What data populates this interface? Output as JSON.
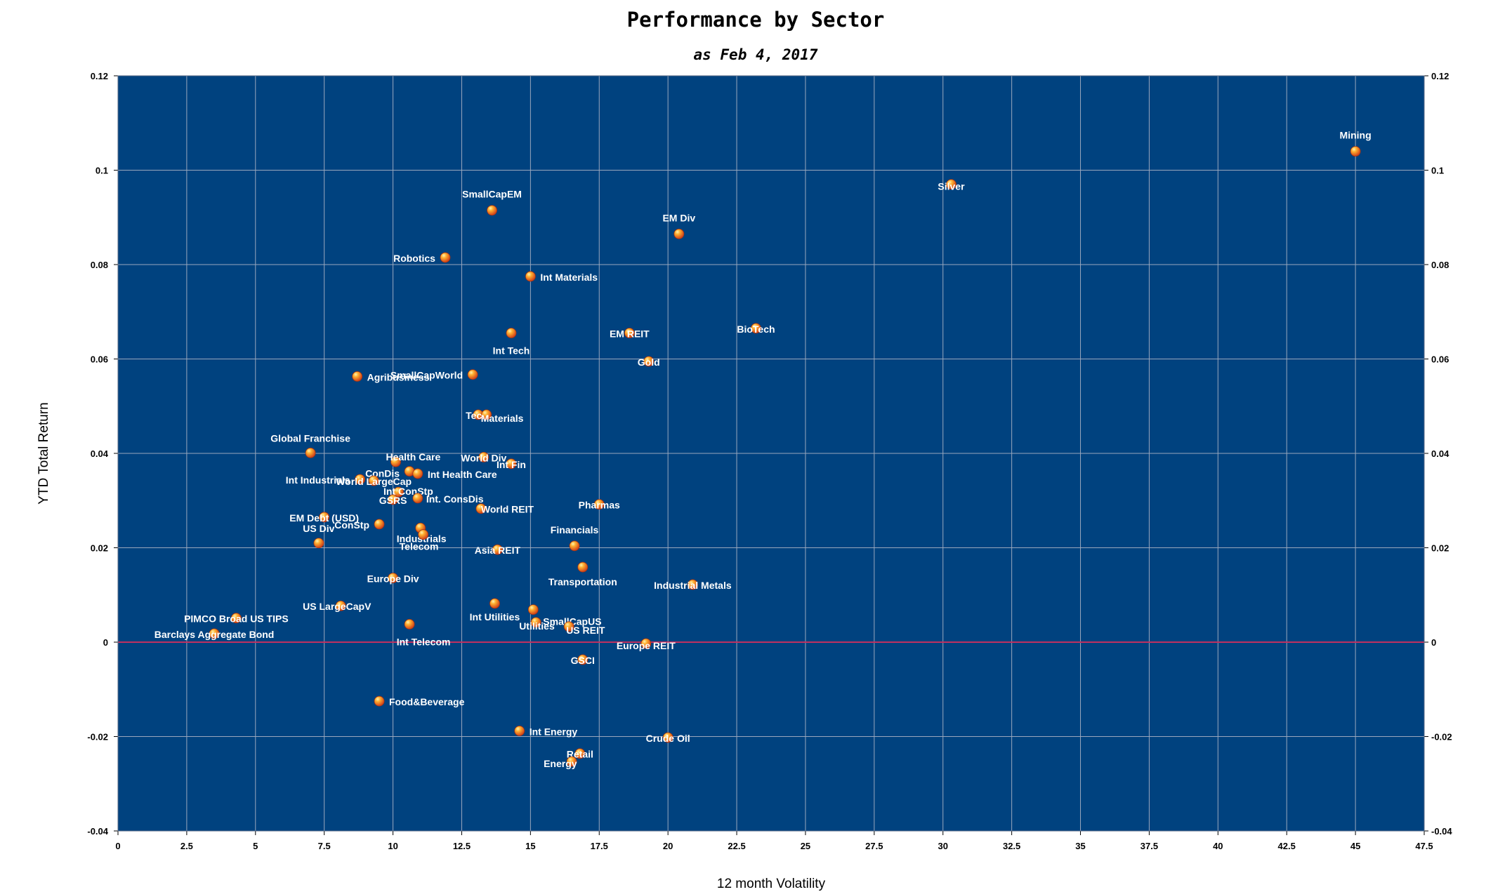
{
  "chart_data": {
    "type": "scatter",
    "title": "Performance by Sector",
    "subtitle": "as Feb 4, 2017",
    "xlabel": "12 month Volatility",
    "ylabel": "YTD Total Return",
    "xlim": [
      0,
      47.5
    ],
    "ylim": [
      -0.04,
      0.12
    ],
    "x_ticks": [
      "0",
      "2.5",
      "5",
      "7.5",
      "10",
      "12.5",
      "15",
      "17.5",
      "20",
      "22.5",
      "25",
      "27.5",
      "30",
      "32.5",
      "35",
      "37.5",
      "40",
      "42.5",
      "45",
      "47.5"
    ],
    "y_ticks": [
      "-0.04",
      "-0.02",
      "0",
      "0.02",
      "0.04",
      "0.06",
      "0.08",
      "0.1",
      "0.12"
    ],
    "grid": true,
    "colors": {
      "plot_background": "#00427f",
      "gridline": "#9aa7bd",
      "zero_line": "#c03060",
      "marker": "#f07818",
      "label_text": "#ffffff"
    },
    "points": [
      {
        "name": "Mining",
        "x": 45.0,
        "y": 0.104
      },
      {
        "name": "Silver",
        "x": 30.3,
        "y": 0.097
      },
      {
        "name": "SmallCapEM",
        "x": 13.6,
        "y": 0.0915
      },
      {
        "name": "EM Div",
        "x": 20.4,
        "y": 0.0865
      },
      {
        "name": "Robotics",
        "x": 11.9,
        "y": 0.0815
      },
      {
        "name": "Int Materials",
        "x": 15.0,
        "y": 0.0775
      },
      {
        "name": "BioTech",
        "x": 23.2,
        "y": 0.0665
      },
      {
        "name": "EM REIT",
        "x": 18.6,
        "y": 0.0655
      },
      {
        "name": "Int Tech",
        "x": 14.3,
        "y": 0.0655
      },
      {
        "name": "Gold",
        "x": 19.3,
        "y": 0.0595
      },
      {
        "name": "SmallCapWorld",
        "x": 12.9,
        "y": 0.0567
      },
      {
        "name": "Agribusiness",
        "x": 8.7,
        "y": 0.0563
      },
      {
        "name": "Tech",
        "x": 13.1,
        "y": 0.0482
      },
      {
        "name": "Materials",
        "x": 13.4,
        "y": 0.0482
      },
      {
        "name": "Global Franchise",
        "x": 7.0,
        "y": 0.0401
      },
      {
        "name": "World Div",
        "x": 13.3,
        "y": 0.0392
      },
      {
        "name": "Health Care",
        "x": 10.1,
        "y": 0.0382
      },
      {
        "name": "Int Fin",
        "x": 14.3,
        "y": 0.0378
      },
      {
        "name": "ConDis",
        "x": 10.6,
        "y": 0.0362
      },
      {
        "name": "Int Health Care",
        "x": 10.9,
        "y": 0.0357
      },
      {
        "name": "Int Industrials",
        "x": 8.8,
        "y": 0.0345
      },
      {
        "name": "World LargeCap",
        "x": 9.3,
        "y": 0.0342
      },
      {
        "name": "Int ConStp",
        "x": 10.2,
        "y": 0.0318
      },
      {
        "name": "Int. ConsDis",
        "x": 10.9,
        "y": 0.0305
      },
      {
        "name": "Pharmas",
        "x": 17.5,
        "y": 0.0292
      },
      {
        "name": "GSRS",
        "x": 10.0,
        "y": 0.0302
      },
      {
        "name": "World REIT",
        "x": 13.2,
        "y": 0.0283
      },
      {
        "name": "EM Debt (USD)",
        "x": 7.5,
        "y": 0.0265
      },
      {
        "name": "ConStp",
        "x": 9.5,
        "y": 0.025
      },
      {
        "name": "Industrials",
        "x": 11.0,
        "y": 0.0242
      },
      {
        "name": "US Div",
        "x": 7.3,
        "y": 0.021
      },
      {
        "name": "Telecom",
        "x": 11.1,
        "y": 0.0228
      },
      {
        "name": "Financials",
        "x": 16.6,
        "y": 0.0204
      },
      {
        "name": "Asia REIT",
        "x": 13.8,
        "y": 0.0196
      },
      {
        "name": "Transportation",
        "x": 16.9,
        "y": 0.0159
      },
      {
        "name": "Europe Div",
        "x": 10.0,
        "y": 0.0136
      },
      {
        "name": "Industrial Metals",
        "x": 20.9,
        "y": 0.0122
      },
      {
        "name": "US LargeCapV",
        "x": 8.1,
        "y": 0.0077
      },
      {
        "name": "Int Utilities",
        "x": 13.7,
        "y": 0.0082
      },
      {
        "name": "SmallCapUS",
        "x": 15.1,
        "y": 0.0069
      },
      {
        "name": "Utilities",
        "x": 15.2,
        "y": 0.0042
      },
      {
        "name": "US REIT",
        "x": 16.4,
        "y": 0.0033
      },
      {
        "name": "PIMCO Broad US TIPS",
        "x": 4.3,
        "y": 0.0051
      },
      {
        "name": "Int Telecom",
        "x": 10.6,
        "y": 0.0038
      },
      {
        "name": "Barclays Aggregate Bond",
        "x": 3.5,
        "y": 0.0018
      },
      {
        "name": "Europe REIT",
        "x": 19.2,
        "y": -0.0003
      },
      {
        "name": "GSCI",
        "x": 16.9,
        "y": -0.0037
      },
      {
        "name": "Food&Beverage",
        "x": 9.5,
        "y": -0.0125
      },
      {
        "name": "Int Energy",
        "x": 14.6,
        "y": -0.0188
      },
      {
        "name": "Crude Oil",
        "x": 20.0,
        "y": -0.0202
      },
      {
        "name": "Retail",
        "x": 16.8,
        "y": -0.0236
      },
      {
        "name": "Energy",
        "x": 16.5,
        "y": -0.0253
      }
    ]
  }
}
